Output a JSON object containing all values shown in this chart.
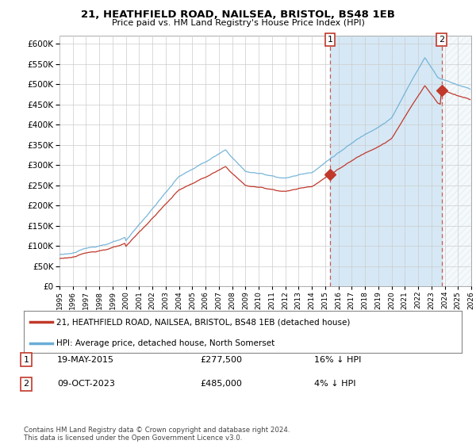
{
  "title": "21, HEATHFIELD ROAD, NAILSEA, BRISTOL, BS48 1EB",
  "subtitle": "Price paid vs. HM Land Registry's House Price Index (HPI)",
  "hpi_label": "HPI: Average price, detached house, North Somerset",
  "price_label": "21, HEATHFIELD ROAD, NAILSEA, BRISTOL, BS48 1EB (detached house)",
  "hpi_color": "#6aaed6",
  "price_color": "#c0392b",
  "shaded_color": "#d6e8f5",
  "annotation1_date": "19-MAY-2015",
  "annotation1_price": "£277,500",
  "annotation1_hpi": "16% ↓ HPI",
  "annotation1_year": 2015.38,
  "annotation1_value": 277500,
  "annotation2_date": "09-OCT-2023",
  "annotation2_price": "£485,000",
  "annotation2_hpi": "4% ↓ HPI",
  "annotation2_year": 2023.77,
  "annotation2_value": 485000,
  "ylim_min": 0,
  "ylim_max": 620000,
  "ytick_step": 50000,
  "xmin": 1995,
  "xmax": 2026,
  "footer": "Contains HM Land Registry data © Crown copyright and database right 2024.\nThis data is licensed under the Open Government Licence v3.0.",
  "bg_color": "#ffffff",
  "grid_color": "#cccccc"
}
